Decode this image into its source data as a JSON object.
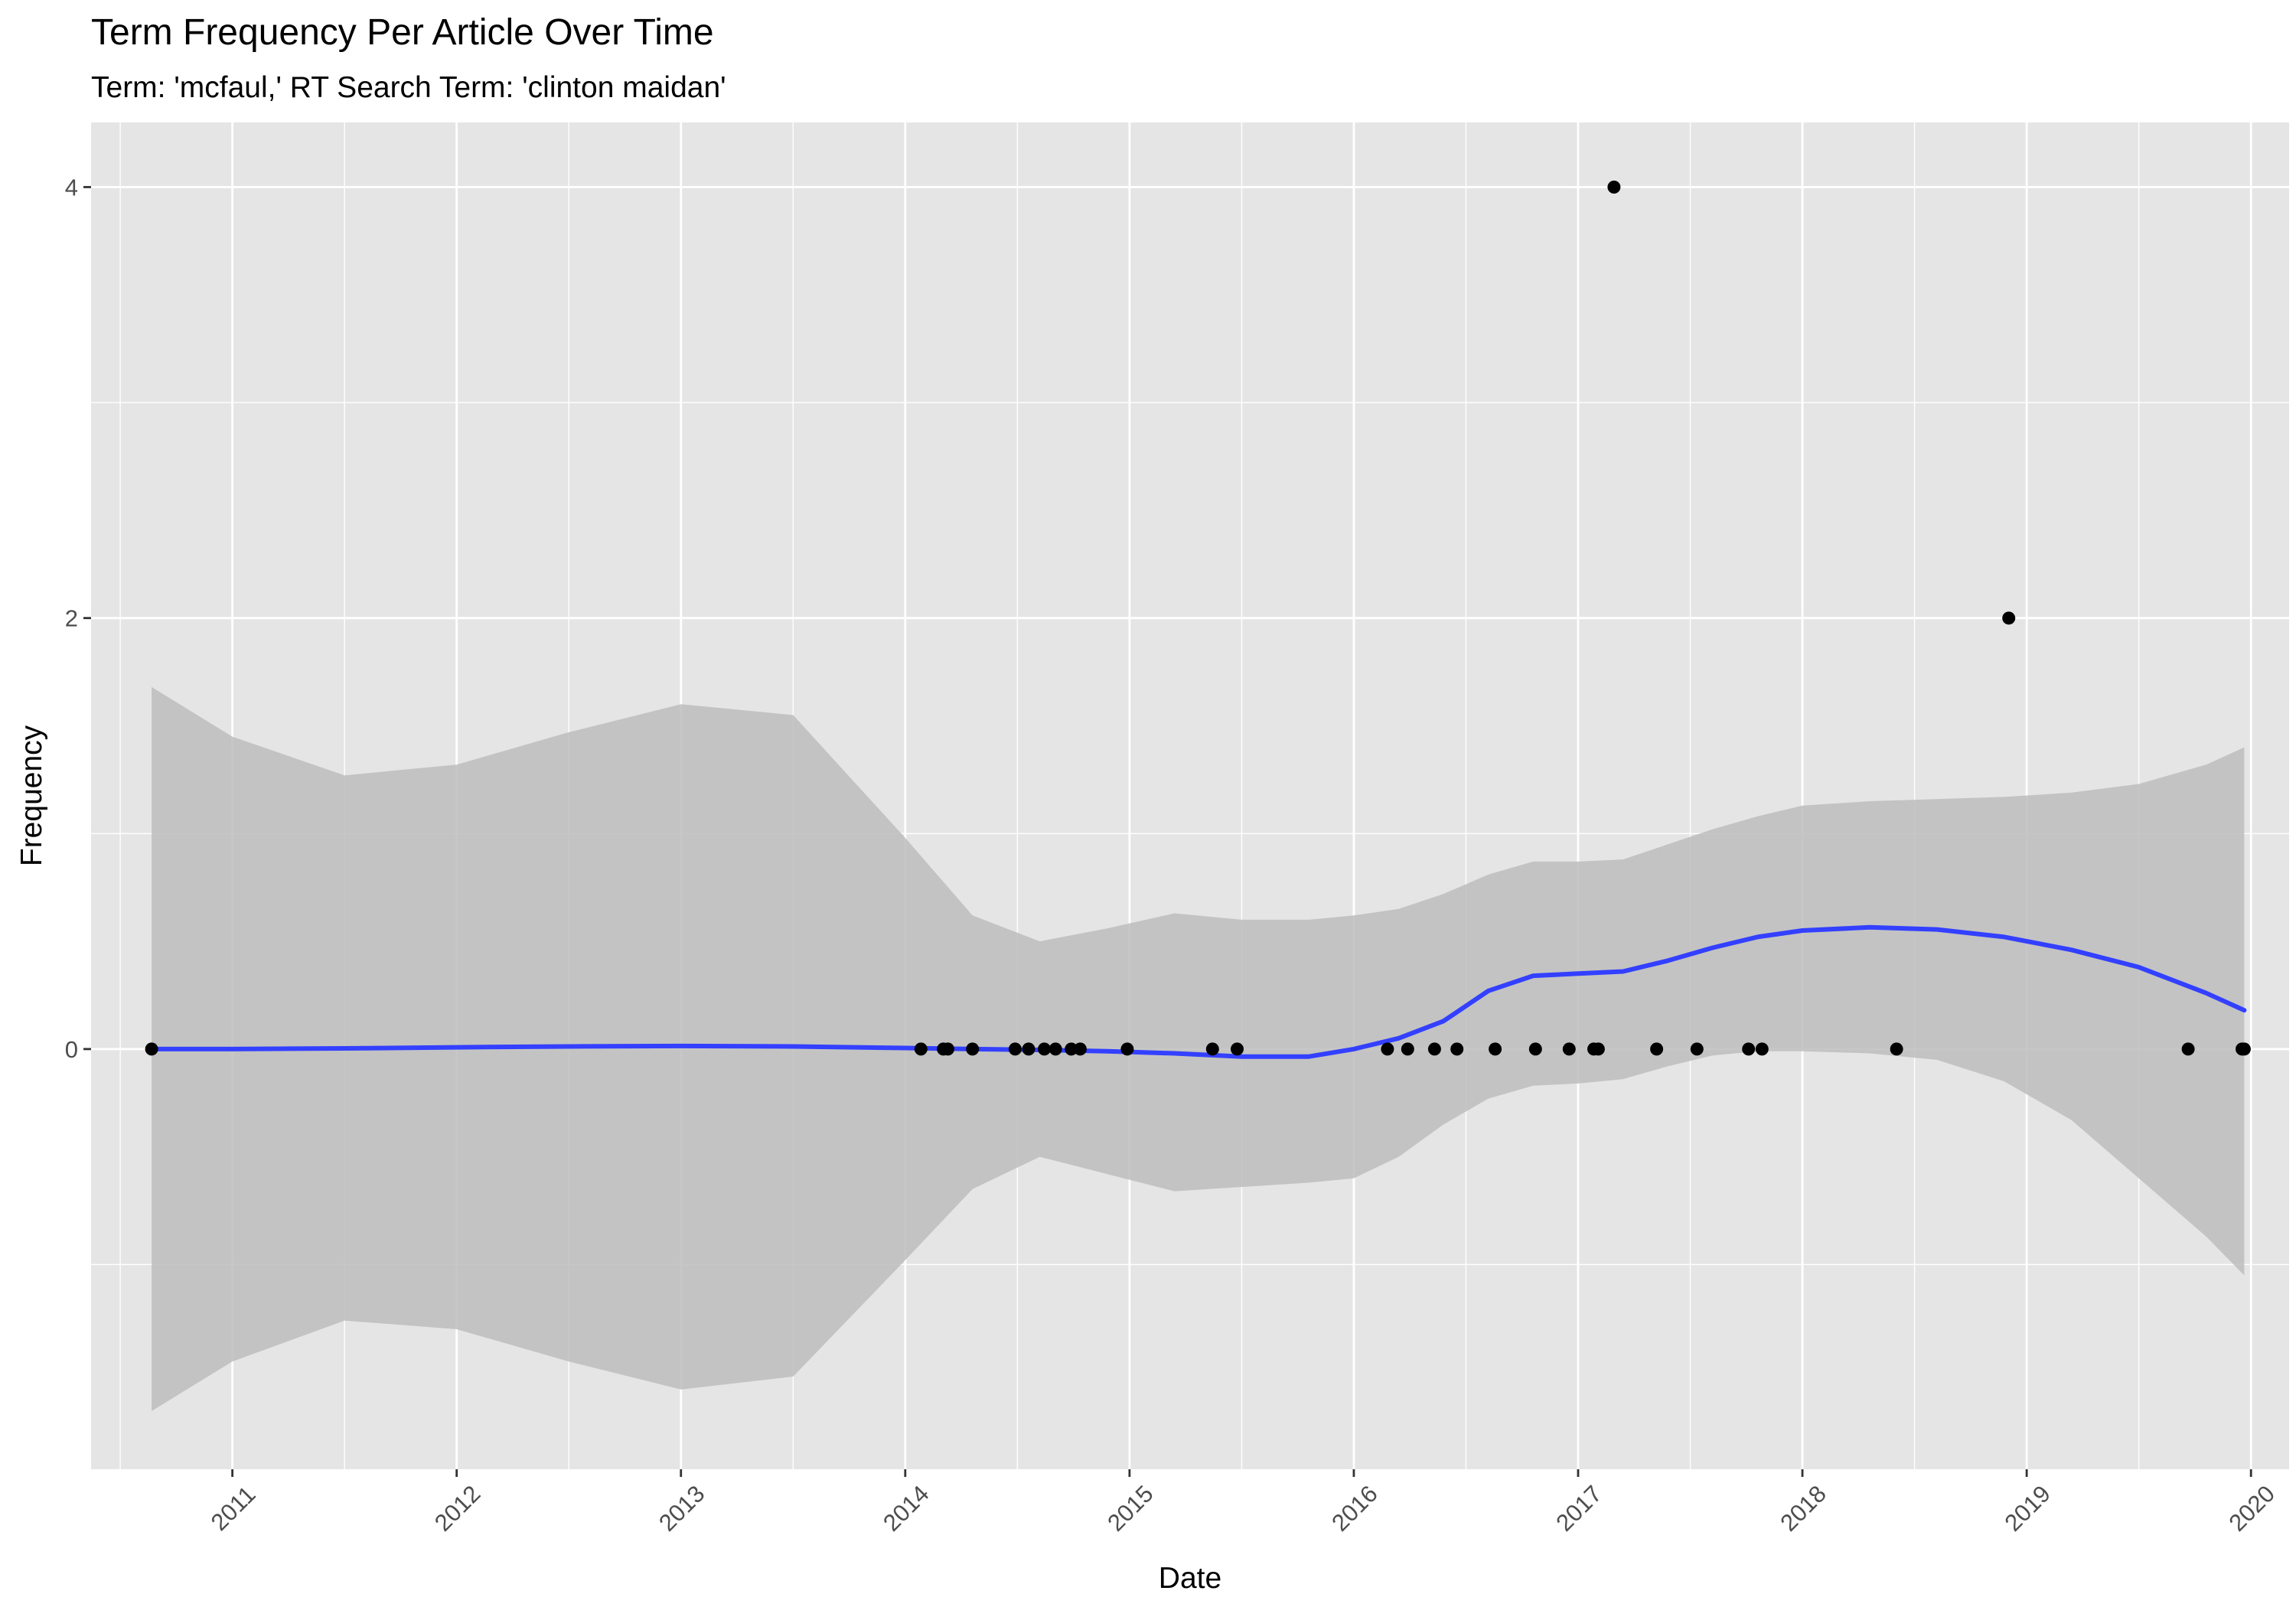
{
  "chart_data": {
    "type": "scatter",
    "title": "Term Frequency Per Article Over Time",
    "subtitle": "Term: 'mcfaul,' RT Search Term: 'clinton maidan'",
    "xlabel": "Date",
    "ylabel": "Frequency",
    "xlim": [
      2010.37,
      2020.17
    ],
    "ylim": [
      -1.95,
      4.3
    ],
    "x_ticks": [
      2011,
      2012,
      2013,
      2014,
      2015,
      2016,
      2017,
      2018,
      2019,
      2020
    ],
    "x_tick_labels": [
      "2011",
      "2012",
      "2013",
      "2014",
      "2015",
      "2016",
      "2017",
      "2018",
      "2019",
      "2020"
    ],
    "y_ticks": [
      0,
      2,
      4
    ],
    "y_tick_labels": [
      "0",
      "2",
      "4"
    ],
    "grid": true,
    "background_color": "#e5e5e5",
    "grid_color": "#ffffff",
    "point_color": "#000000",
    "smooth_color": "#3340ff",
    "band_color": "#bdbdbd",
    "points": [
      {
        "x": 2010.64,
        "y": 0
      },
      {
        "x": 2014.07,
        "y": 0
      },
      {
        "x": 2014.17,
        "y": 0
      },
      {
        "x": 2014.19,
        "y": 0
      },
      {
        "x": 2014.3,
        "y": 0
      },
      {
        "x": 2014.49,
        "y": 0
      },
      {
        "x": 2014.55,
        "y": 0
      },
      {
        "x": 2014.62,
        "y": 0
      },
      {
        "x": 2014.67,
        "y": 0
      },
      {
        "x": 2014.74,
        "y": 0
      },
      {
        "x": 2014.78,
        "y": 0
      },
      {
        "x": 2014.99,
        "y": 0
      },
      {
        "x": 2015.37,
        "y": 0
      },
      {
        "x": 2015.48,
        "y": 0
      },
      {
        "x": 2016.15,
        "y": 0
      },
      {
        "x": 2016.24,
        "y": 0
      },
      {
        "x": 2016.36,
        "y": 0
      },
      {
        "x": 2016.46,
        "y": 0
      },
      {
        "x": 2016.63,
        "y": 0
      },
      {
        "x": 2016.81,
        "y": 0
      },
      {
        "x": 2016.96,
        "y": 0
      },
      {
        "x": 2017.07,
        "y": 0
      },
      {
        "x": 2017.09,
        "y": 0
      },
      {
        "x": 2017.16,
        "y": 4
      },
      {
        "x": 2017.35,
        "y": 0
      },
      {
        "x": 2017.53,
        "y": 0
      },
      {
        "x": 2017.76,
        "y": 0
      },
      {
        "x": 2017.82,
        "y": 0
      },
      {
        "x": 2018.42,
        "y": 0
      },
      {
        "x": 2018.92,
        "y": 2
      },
      {
        "x": 2019.72,
        "y": 0
      },
      {
        "x": 2019.96,
        "y": 0
      },
      {
        "x": 2019.97,
        "y": 0
      }
    ],
    "smooth": {
      "x": [
        2010.64,
        2011.0,
        2011.5,
        2012.0,
        2012.5,
        2013.0,
        2013.5,
        2014.0,
        2014.3,
        2014.6,
        2014.9,
        2015.2,
        2015.5,
        2015.8,
        2016.0,
        2016.2,
        2016.4,
        2016.6,
        2016.8,
        2017.0,
        2017.2,
        2017.4,
        2017.6,
        2017.8,
        2018.0,
        2018.3,
        2018.6,
        2018.9,
        2019.2,
        2019.5,
        2019.8,
        2019.97
      ],
      "y": [
        0.0,
        0.0,
        0.003,
        0.008,
        0.012,
        0.014,
        0.012,
        0.005,
        0.0,
        -0.004,
        -0.01,
        -0.02,
        -0.035,
        -0.035,
        0.0,
        0.05,
        0.13,
        0.27,
        0.34,
        0.35,
        0.36,
        0.41,
        0.47,
        0.52,
        0.55,
        0.565,
        0.555,
        0.52,
        0.46,
        0.38,
        0.26,
        0.18
      ],
      "lower": [
        -1.68,
        -1.45,
        -1.26,
        -1.3,
        -1.45,
        -1.58,
        -1.52,
        -0.98,
        -0.65,
        -0.5,
        -0.58,
        -0.66,
        -0.64,
        -0.62,
        -0.6,
        -0.5,
        -0.35,
        -0.23,
        -0.17,
        -0.16,
        -0.14,
        -0.08,
        -0.03,
        -0.01,
        -0.01,
        -0.02,
        -0.05,
        -0.15,
        -0.33,
        -0.6,
        -0.87,
        -1.05
      ],
      "upper": [
        1.68,
        1.45,
        1.27,
        1.32,
        1.47,
        1.6,
        1.55,
        0.98,
        0.62,
        0.5,
        0.56,
        0.63,
        0.6,
        0.6,
        0.62,
        0.65,
        0.72,
        0.81,
        0.87,
        0.87,
        0.88,
        0.95,
        1.02,
        1.08,
        1.13,
        1.15,
        1.16,
        1.17,
        1.19,
        1.23,
        1.32,
        1.4
      ]
    }
  }
}
